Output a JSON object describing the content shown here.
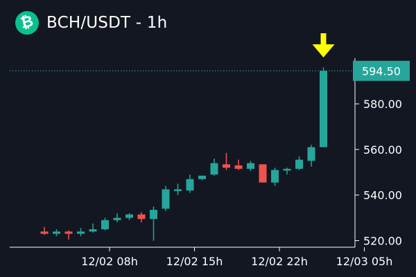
{
  "header": {
    "title": "BCH/USDT - 1h",
    "logo_icon": "bitcoin-cash-icon",
    "logo_symbol": "₿",
    "logo_color": "#0ac18e"
  },
  "colors": {
    "background": "#131722",
    "up": "#26a69a",
    "down": "#ef5350",
    "axis": "#ffffff",
    "price_line": "#26a69a",
    "price_tag": "#26a69a",
    "arrow": "#ffff00"
  },
  "chart_data": {
    "type": "candlestick",
    "title": "BCH/USDT - 1h",
    "ylim": [
      516,
      602
    ],
    "y_ticks": [
      520,
      540,
      560,
      580
    ],
    "y_tick_labels": [
      "520.00",
      "540.00",
      "560.00",
      "580.00"
    ],
    "x_ticks": [
      {
        "index": 5,
        "label": "12/02 08h"
      },
      {
        "index": 12,
        "label": "12/02 15h"
      },
      {
        "index": 19,
        "label": "12/02 22h"
      },
      {
        "index": 26,
        "label": "12/03 05h"
      }
    ],
    "candles": [
      {
        "o": 524,
        "h": 526,
        "l": 522.5,
        "c": 523
      },
      {
        "o": 523,
        "h": 525,
        "l": 522,
        "c": 524
      },
      {
        "o": 524,
        "h": 524.5,
        "l": 520.5,
        "c": 523
      },
      {
        "o": 523,
        "h": 525.5,
        "l": 522,
        "c": 524
      },
      {
        "o": 524,
        "h": 527.5,
        "l": 523.5,
        "c": 525
      },
      {
        "o": 525,
        "h": 530,
        "l": 524.5,
        "c": 529
      },
      {
        "o": 529,
        "h": 532,
        "l": 528,
        "c": 530
      },
      {
        "o": 530,
        "h": 532,
        "l": 529,
        "c": 531.5
      },
      {
        "o": 531.5,
        "h": 532.5,
        "l": 528,
        "c": 529.5
      },
      {
        "o": 529.5,
        "h": 535,
        "l": 520,
        "c": 533.5
      },
      {
        "o": 534,
        "h": 544,
        "l": 533,
        "c": 542.5
      },
      {
        "o": 542.5,
        "h": 545,
        "l": 540,
        "c": 542.5
      },
      {
        "o": 542,
        "h": 549,
        "l": 541,
        "c": 547
      },
      {
        "o": 547,
        "h": 548.5,
        "l": 546.5,
        "c": 548.5
      },
      {
        "o": 549,
        "h": 556,
        "l": 548.5,
        "c": 554
      },
      {
        "o": 553.5,
        "h": 558.5,
        "l": 551,
        "c": 552
      },
      {
        "o": 553,
        "h": 555.5,
        "l": 551,
        "c": 551.5
      },
      {
        "o": 551.5,
        "h": 555,
        "l": 550.5,
        "c": 554
      },
      {
        "o": 553.5,
        "h": 553.5,
        "l": 545.5,
        "c": 545.5
      },
      {
        "o": 545.5,
        "h": 552,
        "l": 544,
        "c": 551
      },
      {
        "o": 551,
        "h": 552,
        "l": 549,
        "c": 551.5
      },
      {
        "o": 551.5,
        "h": 557,
        "l": 551,
        "c": 555.5
      },
      {
        "o": 555,
        "h": 562,
        "l": 552.5,
        "c": 561
      },
      {
        "o": 561,
        "h": 596,
        "l": 561,
        "c": 594.5
      }
    ],
    "last_price": 594.5,
    "last_price_label": "594.50",
    "marker_icon": "arrow-down-icon"
  }
}
